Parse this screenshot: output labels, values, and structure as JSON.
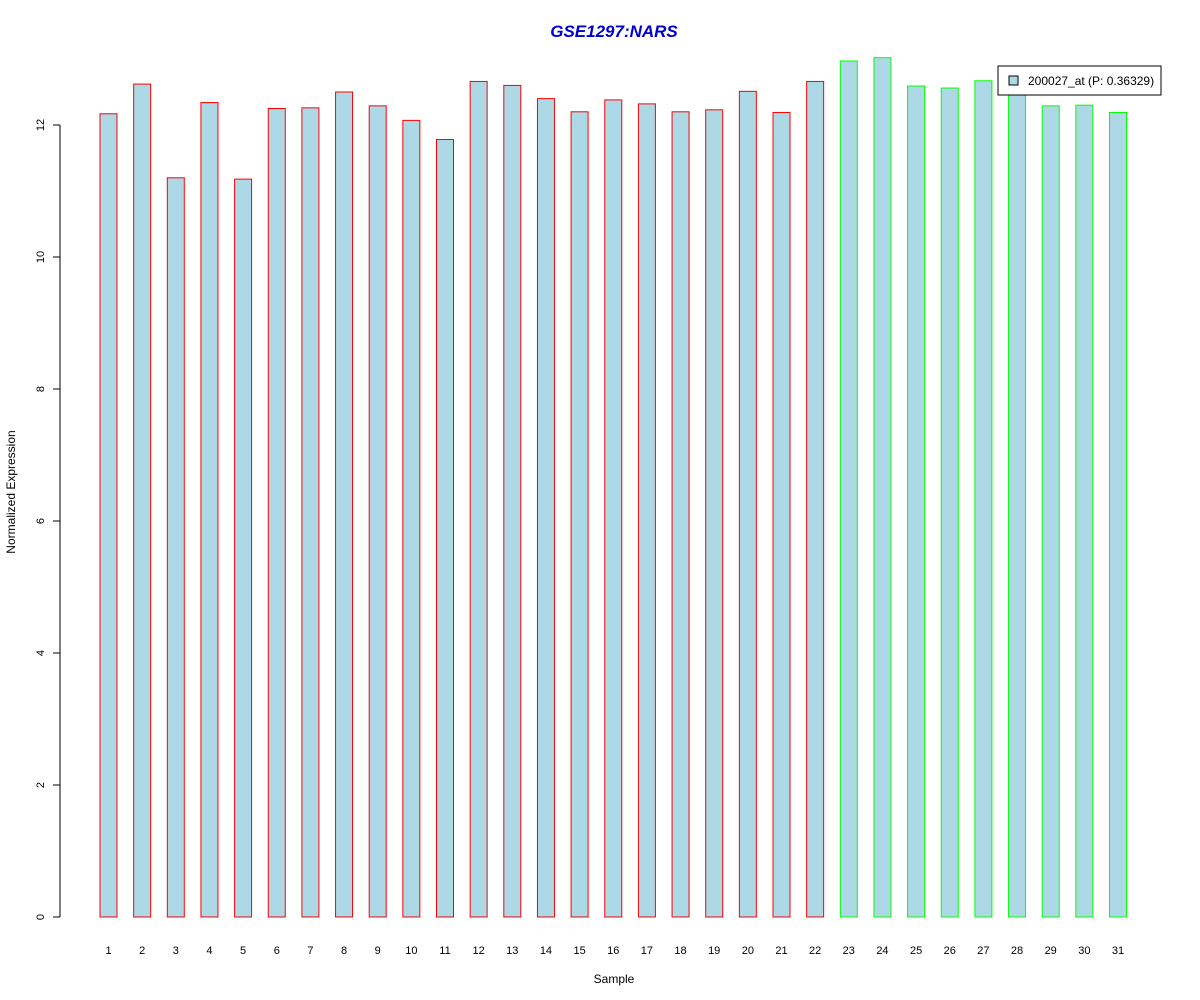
{
  "chart_data": {
    "type": "bar",
    "title": "GSE1297:NARS",
    "xlabel": "Sample",
    "ylabel": "Normalized Expression",
    "ylim": [
      0,
      13
    ],
    "yticks": [
      0,
      2,
      4,
      6,
      8,
      10,
      12
    ],
    "categories": [
      "1",
      "2",
      "3",
      "4",
      "5",
      "6",
      "7",
      "8",
      "9",
      "10",
      "11",
      "12",
      "13",
      "14",
      "15",
      "16",
      "17",
      "18",
      "19",
      "20",
      "21",
      "22",
      "23",
      "24",
      "25",
      "26",
      "27",
      "28",
      "29",
      "30",
      "31"
    ],
    "series": [
      {
        "name": "200027_at (P: 0.36329)",
        "values": [
          12.17,
          12.62,
          11.2,
          12.34,
          11.18,
          12.25,
          12.26,
          12.5,
          12.29,
          12.07,
          11.78,
          12.66,
          12.6,
          12.4,
          12.2,
          12.38,
          12.32,
          12.2,
          12.23,
          12.51,
          12.19,
          12.66,
          12.97,
          13.02,
          12.59,
          12.56,
          12.67,
          12.49,
          12.29,
          12.3,
          12.19
        ]
      }
    ],
    "bar_fill": "#add8e6",
    "group_colors": {
      "group1": "#ff0000",
      "group2": "#00ff00"
    },
    "groups": [
      1,
      1,
      1,
      1,
      1,
      1,
      1,
      1,
      1,
      1,
      1,
      1,
      1,
      1,
      1,
      1,
      1,
      1,
      1,
      1,
      1,
      1,
      2,
      2,
      2,
      2,
      2,
      2,
      2,
      2,
      2
    ],
    "title_color": "#0000cc",
    "legend_position": "top-right",
    "grid": false
  }
}
